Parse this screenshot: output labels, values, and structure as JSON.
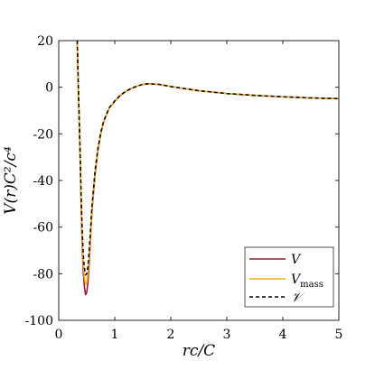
{
  "chart_data": {
    "type": "line",
    "title": "",
    "xlabel": "rc/C",
    "ylabel": "V(r)C²/c⁴",
    "xlim": [
      0,
      5
    ],
    "ylim": [
      -100,
      20
    ],
    "x_ticks": [
      0,
      1,
      2,
      3,
      4,
      5
    ],
    "x_tick_labels": [
      "0",
      "1",
      "2",
      "3",
      "4",
      "5"
    ],
    "y_ticks": [
      20,
      0,
      -20,
      -40,
      -60,
      -80,
      -100
    ],
    "y_tick_labels": [
      "20",
      "0",
      "-20",
      "-40",
      "-60",
      "-80",
      "-100"
    ],
    "grid": false,
    "legend_position": "bottom-right",
    "series": [
      {
        "name": "V",
        "color": "#a2142f",
        "style": "solid",
        "x": [
          0.33,
          0.35,
          0.38,
          0.4,
          0.42,
          0.44,
          0.46,
          0.48,
          0.5,
          0.52,
          0.54,
          0.56,
          0.58,
          0.6,
          0.65,
          0.7,
          0.75,
          0.8,
          0.9,
          1.0,
          1.1,
          1.2,
          1.3,
          1.4,
          1.5,
          1.6,
          1.8,
          2.0,
          2.5,
          3.0,
          3.5,
          4.0,
          4.5,
          5.0
        ],
        "y": [
          20,
          0,
          -28,
          -50,
          -68,
          -80,
          -86,
          -89,
          -88,
          -84,
          -77,
          -68,
          -59,
          -51,
          -37,
          -27,
          -20,
          -15,
          -9,
          -6,
          -3.5,
          -1.8,
          -0.5,
          0.5,
          1.2,
          1.5,
          1.2,
          0.3,
          -1.5,
          -2.7,
          -3.5,
          -4.1,
          -4.6,
          -4.9
        ]
      },
      {
        "name": "V_mass",
        "color": "#edb120",
        "style": "solid",
        "x": [
          0.33,
          0.35,
          0.38,
          0.4,
          0.42,
          0.44,
          0.46,
          0.48,
          0.5,
          0.52,
          0.54,
          0.56,
          0.58,
          0.6,
          0.65,
          0.7,
          0.75,
          0.8,
          0.9,
          1.0,
          1.1,
          1.2,
          1.3,
          1.4,
          1.5,
          1.6,
          1.8,
          2.0,
          2.5,
          3.0,
          3.5,
          4.0,
          4.5,
          5.0
        ],
        "y": [
          20,
          0,
          -27,
          -48,
          -65,
          -76,
          -82,
          -84.5,
          -84,
          -80,
          -74,
          -66,
          -58,
          -50,
          -36,
          -26.5,
          -19.8,
          -14.8,
          -8.9,
          -5.9,
          -3.4,
          -1.7,
          -0.4,
          0.5,
          1.2,
          1.5,
          1.2,
          0.3,
          -1.5,
          -2.7,
          -3.5,
          -4.1,
          -4.6,
          -4.9
        ]
      },
      {
        "name": "𝒱",
        "color": "#000000",
        "style": "dashed",
        "x": [
          0.33,
          0.35,
          0.38,
          0.4,
          0.42,
          0.44,
          0.46,
          0.48,
          0.5,
          0.52,
          0.54,
          0.56,
          0.58,
          0.6,
          0.65,
          0.7,
          0.75,
          0.8,
          0.9,
          1.0,
          1.1,
          1.2,
          1.3,
          1.4,
          1.5,
          1.6,
          1.8,
          2.0,
          2.5,
          3.0,
          3.5,
          4.0,
          4.5,
          5.0
        ],
        "y": [
          20,
          0,
          -26,
          -46,
          -62,
          -72,
          -78,
          -80.5,
          -80,
          -77,
          -71,
          -64,
          -56,
          -49,
          -35.5,
          -26,
          -19.5,
          -14.6,
          -8.8,
          -5.9,
          -3.4,
          -1.7,
          -0.4,
          0.5,
          1.2,
          1.5,
          1.2,
          0.3,
          -1.5,
          -2.7,
          -3.5,
          -4.1,
          -4.6,
          -4.9
        ]
      }
    ],
    "legend": [
      {
        "main": "V",
        "sub": ""
      },
      {
        "main": "V",
        "sub": "mass"
      },
      {
        "main": "𝒱",
        "sub": ""
      }
    ]
  }
}
